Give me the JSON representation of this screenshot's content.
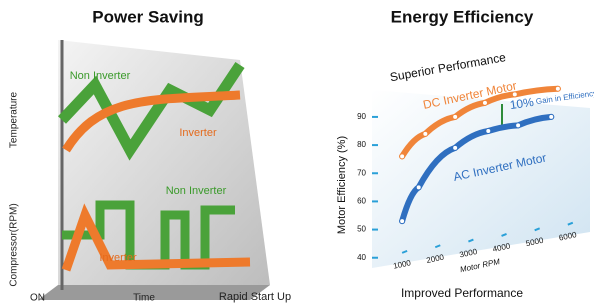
{
  "left_panel": {
    "title": "Power Saving",
    "temperature_label": "Temperature",
    "compressor_label": "Compressor(RPM)",
    "top_non_inverter": "Non Inverter",
    "top_inverter": "Inverter",
    "bottom_non_inverter": "Non Inverter",
    "bottom_inverter": "Inverter",
    "on_label": "ON",
    "time_label": "Time",
    "rapid_label": "Rapid Start Up"
  },
  "chart_data": {
    "type": "line",
    "title": "Energy Efficiency",
    "top_annotation": "Superior Performance",
    "bottom_annotation": "Improved Performance",
    "gain_value": "10%",
    "gain_text": "Gain in Efficiency",
    "ylabel": "Motor Efficiency (%)",
    "xlabel": "Motor RPM",
    "xlim": [
      0,
      6700
    ],
    "ylim": [
      36,
      104
    ],
    "xticks": [
      1000,
      2000,
      3000,
      4000,
      5000,
      6000
    ],
    "yticks": [
      40,
      50,
      60,
      70,
      80,
      90
    ],
    "series": [
      {
        "name": "DC Inverter Motor",
        "color": "#f0853a",
        "x": [
          1000,
          1700,
          2600,
          3500,
          4400,
          5700
        ],
        "values": [
          76,
          84,
          90,
          95,
          98,
          100
        ]
      },
      {
        "name": "AC Inverter Motor",
        "color": "#2f6fc0",
        "x": [
          1000,
          1500,
          2600,
          3600,
          4500,
          5500
        ],
        "values": [
          53,
          65,
          79,
          85,
          87,
          90
        ]
      }
    ]
  }
}
